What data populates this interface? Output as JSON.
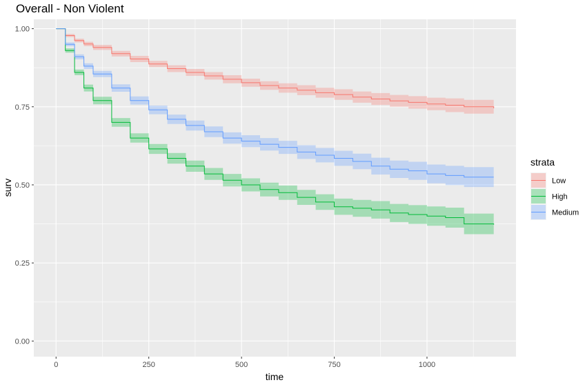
{
  "chart_data": {
    "type": "line",
    "title": "Overall - Non Violent",
    "xlabel": "time",
    "ylabel": "surv",
    "xlim": [
      -60,
      1240
    ],
    "ylim": [
      -0.05,
      1.03
    ],
    "x_ticks": [
      0,
      250,
      500,
      750,
      1000
    ],
    "x_tick_labels": [
      "0",
      "250",
      "500",
      "750",
      "1000"
    ],
    "y_ticks": [
      0,
      0.25,
      0.5,
      0.75,
      1.0
    ],
    "y_tick_labels": [
      "0.00",
      "0.25",
      "0.50",
      "0.75",
      "1.00"
    ],
    "grid": true,
    "legend": {
      "title": "strata",
      "placement": "right"
    },
    "x": [
      0,
      25,
      50,
      75,
      100,
      150,
      200,
      250,
      300,
      350,
      400,
      450,
      500,
      550,
      600,
      650,
      700,
      750,
      800,
      850,
      900,
      950,
      1000,
      1050,
      1100,
      1180
    ],
    "series": [
      {
        "name": "Low",
        "color": "#F8766D",
        "values": [
          1.0,
          0.978,
          0.962,
          0.951,
          0.94,
          0.92,
          0.903,
          0.887,
          0.872,
          0.86,
          0.849,
          0.838,
          0.827,
          0.818,
          0.81,
          0.803,
          0.795,
          0.789,
          0.781,
          0.775,
          0.769,
          0.764,
          0.759,
          0.755,
          0.75,
          0.745
        ],
        "lower": [
          1.0,
          0.973,
          0.956,
          0.944,
          0.932,
          0.911,
          0.893,
          0.877,
          0.861,
          0.849,
          0.837,
          0.825,
          0.814,
          0.804,
          0.795,
          0.787,
          0.779,
          0.772,
          0.763,
          0.756,
          0.75,
          0.744,
          0.739,
          0.733,
          0.728,
          0.722
        ],
        "upper": [
          1.0,
          0.983,
          0.968,
          0.958,
          0.948,
          0.929,
          0.913,
          0.897,
          0.883,
          0.871,
          0.861,
          0.851,
          0.84,
          0.832,
          0.825,
          0.819,
          0.811,
          0.806,
          0.799,
          0.794,
          0.788,
          0.784,
          0.779,
          0.777,
          0.772,
          0.768
        ]
      },
      {
        "name": "High",
        "color": "#00BA38",
        "values": [
          1.0,
          0.93,
          0.86,
          0.81,
          0.77,
          0.7,
          0.65,
          0.615,
          0.585,
          0.56,
          0.535,
          0.515,
          0.5,
          0.485,
          0.475,
          0.46,
          0.445,
          0.43,
          0.425,
          0.42,
          0.41,
          0.405,
          0.4,
          0.395,
          0.375,
          0.373
        ],
        "lower": [
          1.0,
          0.923,
          0.851,
          0.799,
          0.758,
          0.686,
          0.635,
          0.599,
          0.568,
          0.542,
          0.516,
          0.495,
          0.479,
          0.463,
          0.452,
          0.436,
          0.42,
          0.404,
          0.398,
          0.392,
          0.381,
          0.375,
          0.369,
          0.363,
          0.342,
          0.338
        ],
        "upper": [
          1.0,
          0.937,
          0.869,
          0.821,
          0.782,
          0.714,
          0.665,
          0.631,
          0.602,
          0.578,
          0.554,
          0.535,
          0.521,
          0.507,
          0.498,
          0.484,
          0.47,
          0.456,
          0.452,
          0.448,
          0.439,
          0.435,
          0.431,
          0.427,
          0.408,
          0.408
        ]
      },
      {
        "name": "Medium",
        "color": "#619CFF",
        "values": [
          1.0,
          0.95,
          0.91,
          0.88,
          0.855,
          0.81,
          0.77,
          0.74,
          0.71,
          0.69,
          0.67,
          0.65,
          0.64,
          0.63,
          0.62,
          0.605,
          0.595,
          0.585,
          0.575,
          0.56,
          0.55,
          0.545,
          0.535,
          0.53,
          0.525,
          0.525
        ],
        "lower": [
          1.0,
          0.944,
          0.902,
          0.871,
          0.845,
          0.798,
          0.757,
          0.726,
          0.695,
          0.674,
          0.653,
          0.632,
          0.621,
          0.61,
          0.599,
          0.583,
          0.572,
          0.561,
          0.55,
          0.533,
          0.522,
          0.516,
          0.505,
          0.499,
          0.493,
          0.49
        ],
        "upper": [
          1.0,
          0.956,
          0.918,
          0.889,
          0.865,
          0.822,
          0.783,
          0.754,
          0.725,
          0.706,
          0.687,
          0.668,
          0.659,
          0.65,
          0.641,
          0.627,
          0.618,
          0.609,
          0.6,
          0.587,
          0.578,
          0.574,
          0.565,
          0.561,
          0.557,
          0.56
        ]
      }
    ]
  }
}
